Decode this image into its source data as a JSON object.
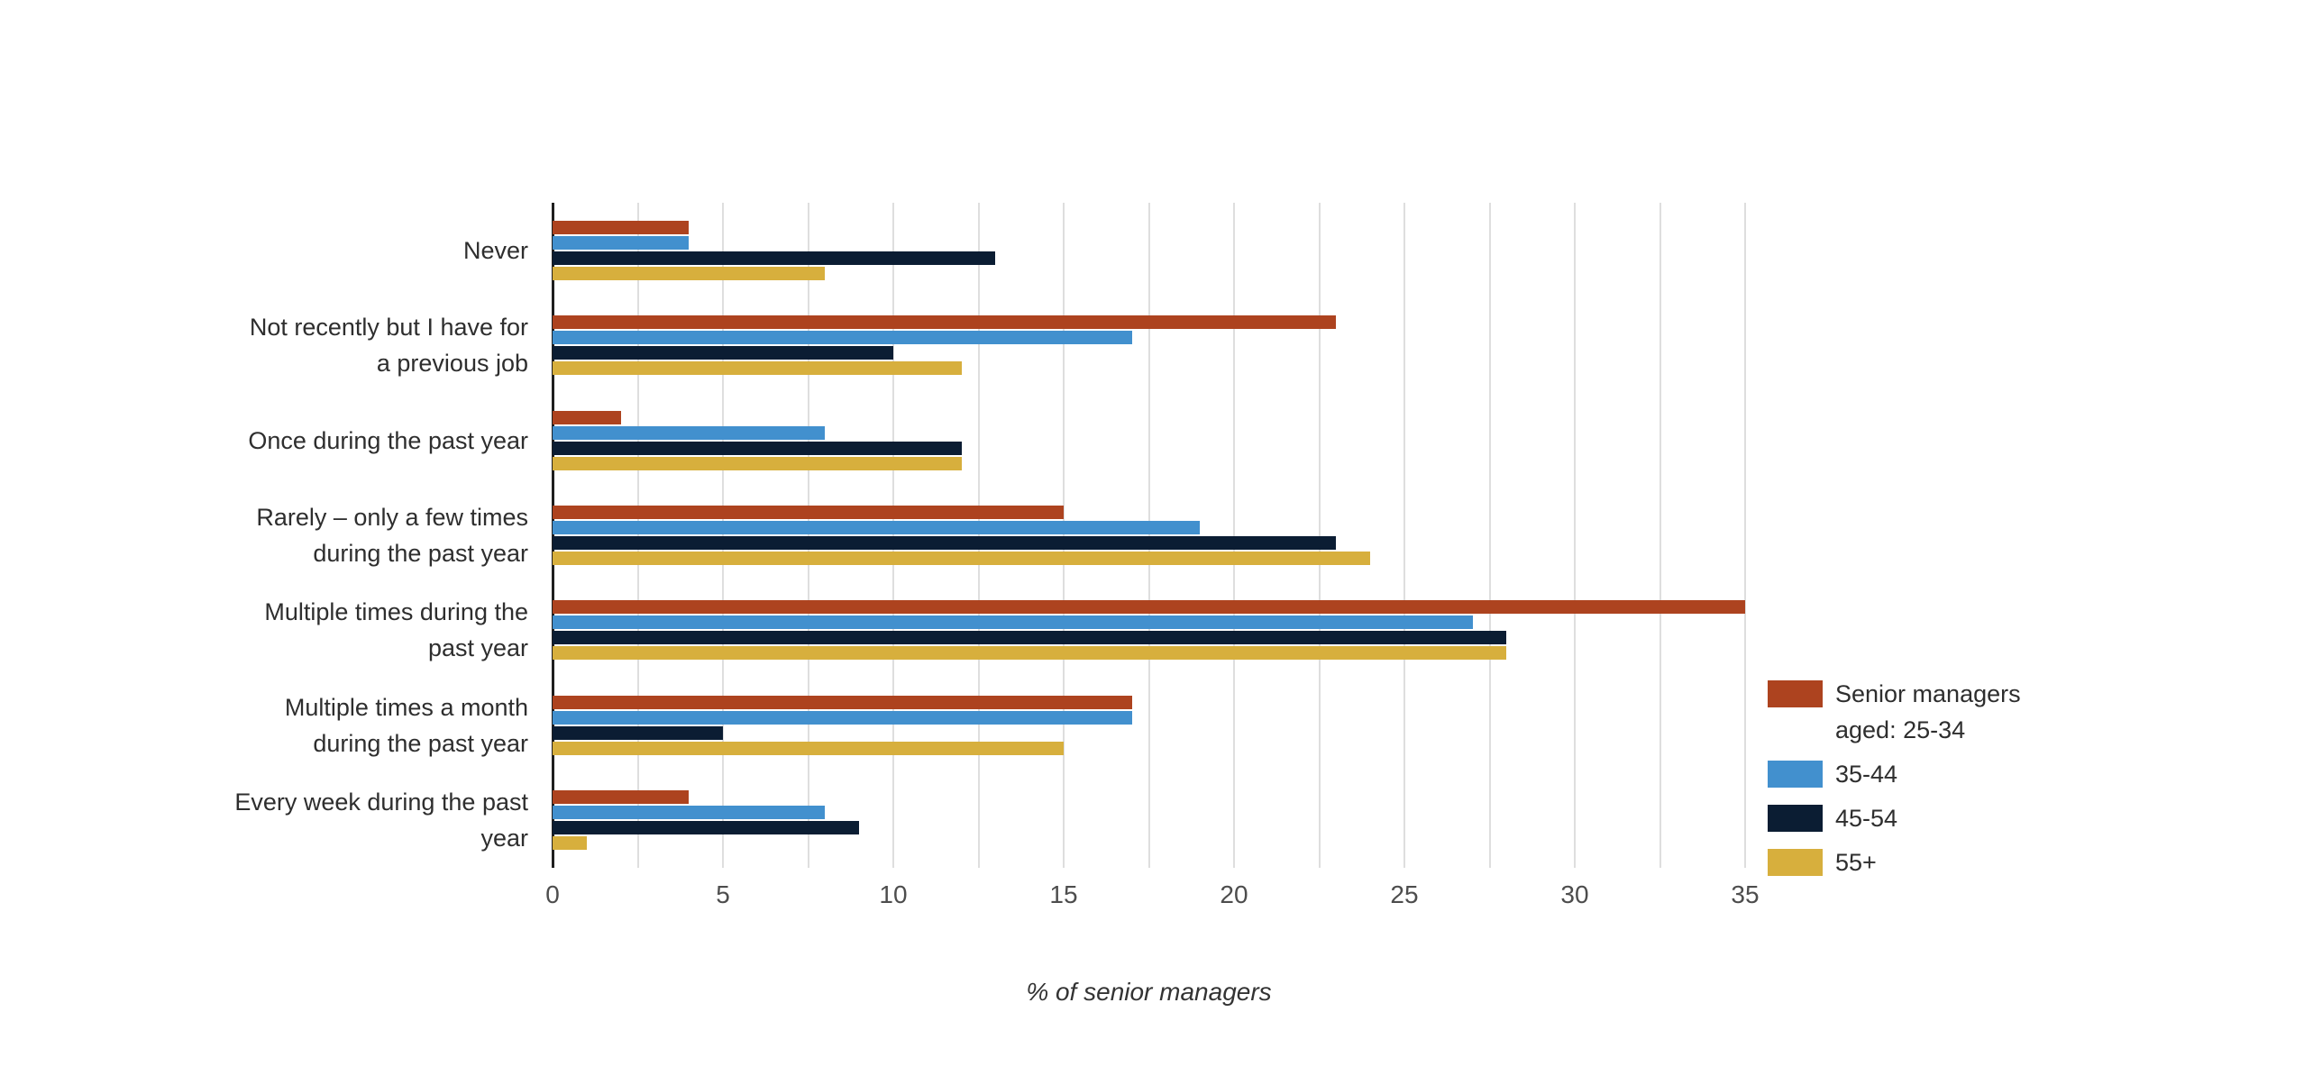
{
  "chart_data": {
    "type": "bar",
    "orientation": "horizontal",
    "title": "",
    "xlabel": "% of senior managers",
    "ylabel": "",
    "xlim": [
      0,
      35
    ],
    "x_ticks": [
      0,
      5,
      10,
      15,
      20,
      25,
      30,
      35
    ],
    "gridline_step": 2.5,
    "grid": true,
    "legend_position": "right",
    "categories": [
      "Never",
      "Not recently but I have for a previous job",
      "Once during the past year",
      "Rarely – only a few times during the past year",
      "Multiple times during the past year",
      "Multiple times a month during the past year",
      "Every week during the past year"
    ],
    "category_label_lines": [
      [
        "Never"
      ],
      [
        "Not recently but I have for",
        "a previous job"
      ],
      [
        "Once during the past year"
      ],
      [
        "Rarely – only a few times",
        "during the past year"
      ],
      [
        "Multiple times during the",
        "past year"
      ],
      [
        "Multiple times a month",
        "during the past year"
      ],
      [
        "Every week during the past",
        "year"
      ]
    ],
    "series": [
      {
        "name": "Senior managers aged: 25-34",
        "color": "#AD431F",
        "values": [
          4,
          23,
          2,
          15,
          35,
          17,
          4
        ]
      },
      {
        "name": "35-44",
        "color": "#4290CE",
        "values": [
          4,
          17,
          8,
          19,
          27,
          17,
          8
        ]
      },
      {
        "name": "45-54",
        "color": "#0B1D33",
        "values": [
          13,
          10,
          12,
          23,
          28,
          5,
          9
        ]
      },
      {
        "name": "55+",
        "color": "#D7AF3D",
        "values": [
          8,
          12,
          12,
          24,
          28,
          15,
          1
        ]
      }
    ],
    "legend_label_lines": [
      [
        "Senior managers",
        "aged: 25-34"
      ],
      [
        "35-44"
      ],
      [
        "45-54"
      ],
      [
        "55+"
      ]
    ],
    "colors": {
      "axis_line": "#1f1f1f",
      "gridline": "#dedede",
      "text": "#2e2e2e",
      "tick_text": "#4d4d4d",
      "background": "#ffffff"
    }
  }
}
